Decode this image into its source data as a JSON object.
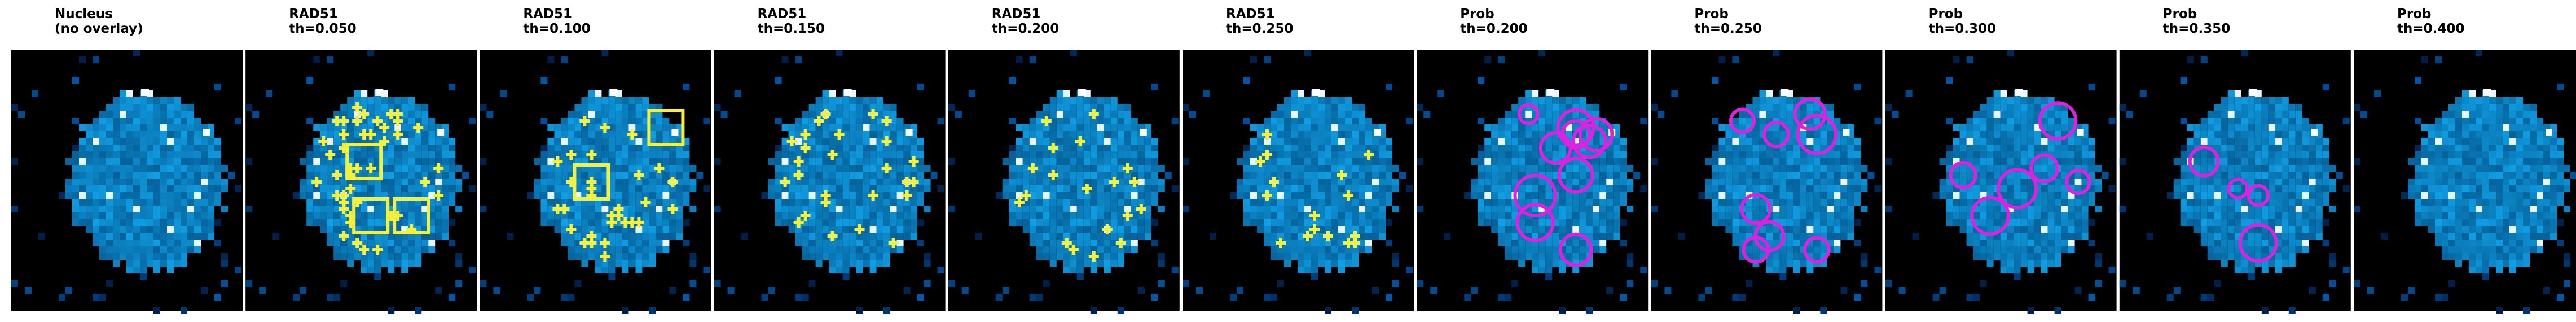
{
  "panels": [
    [
      "Nucleus",
      "(no overlay)"
    ],
    [
      "RAD51",
      "th=0.050"
    ],
    [
      "RAD51",
      "th=0.100"
    ],
    [
      "RAD51",
      "th=0.150"
    ],
    [
      "RAD51",
      "th=0.200"
    ],
    [
      "RAD51",
      "th=0.250"
    ],
    [
      "Prob",
      "th=0.200"
    ],
    [
      "Prob",
      "th=0.250"
    ],
    [
      "Prob",
      "th=0.300"
    ],
    [
      "Prob",
      "th=0.350"
    ],
    [
      "Prob",
      "th=0.400"
    ]
  ]
}
